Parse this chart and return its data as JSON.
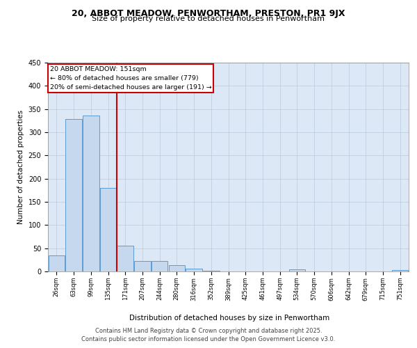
{
  "title1": "20, ABBOT MEADOW, PENWORTHAM, PRESTON, PR1 9JX",
  "title2": "Size of property relative to detached houses in Penwortham",
  "xlabel": "Distribution of detached houses by size in Penwortham",
  "ylabel": "Number of detached properties",
  "categories": [
    "26sqm",
    "63sqm",
    "99sqm",
    "135sqm",
    "171sqm",
    "207sqm",
    "244sqm",
    "280sqm",
    "316sqm",
    "352sqm",
    "389sqm",
    "425sqm",
    "461sqm",
    "497sqm",
    "534sqm",
    "570sqm",
    "606sqm",
    "642sqm",
    "679sqm",
    "715sqm",
    "751sqm"
  ],
  "values": [
    35,
    328,
    336,
    180,
    55,
    22,
    22,
    13,
    6,
    2,
    0,
    0,
    0,
    0,
    4,
    0,
    0,
    0,
    0,
    0,
    3
  ],
  "bar_color": "#c5d8ed",
  "bar_edge_color": "#5b9bd5",
  "vline_x_idx": 3,
  "vline_color": "#cc0000",
  "annotation_title": "20 ABBOT MEADOW: 151sqm",
  "annotation_line1": "← 80% of detached houses are smaller (779)",
  "annotation_line2": "20% of semi-detached houses are larger (191) →",
  "annotation_box_color": "#cc0000",
  "footer1": "Contains HM Land Registry data © Crown copyright and database right 2025.",
  "footer2": "Contains public sector information licensed under the Open Government Licence v3.0.",
  "background_color": "#dce8f5",
  "ylim": [
    0,
    450
  ],
  "yticks": [
    0,
    50,
    100,
    150,
    200,
    250,
    300,
    350,
    400,
    450
  ]
}
